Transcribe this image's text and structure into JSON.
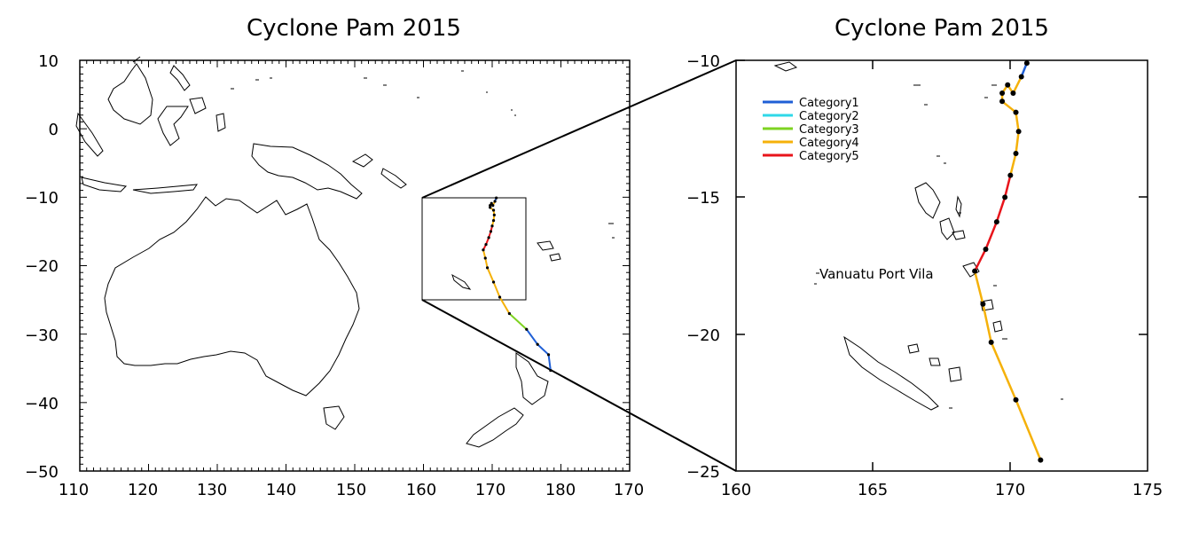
{
  "left_map": {
    "title": "Cyclone Pam 2015",
    "x_ticks": [
      "110",
      "120",
      "130",
      "140",
      "150",
      "160",
      "170",
      "180",
      "170"
    ],
    "y_ticks": [
      "10",
      "0",
      "−10",
      "−20",
      "−30",
      "−40",
      "−50"
    ]
  },
  "right_map": {
    "title": "Cyclone Pam 2015",
    "x_ticks": [
      "160",
      "165",
      "170",
      "175"
    ],
    "y_ticks": [
      "−10",
      "−15",
      "−20",
      "−25"
    ],
    "place_label": "Vanuatu Port Vila"
  },
  "legend": [
    {
      "label": "Category1",
      "color": "#1f5fd6"
    },
    {
      "label": "Category2",
      "color": "#2fd8e8"
    },
    {
      "label": "Category3",
      "color": "#7ed321"
    },
    {
      "label": "Category4",
      "color": "#f5b10a"
    },
    {
      "label": "Category5",
      "color": "#e8141b"
    }
  ],
  "track": {
    "description_units": "degrees lon/lat",
    "points": [
      {
        "lon": 170.6,
        "lat": -10.1,
        "cat": 1
      },
      {
        "lon": 170.4,
        "lat": -10.6,
        "cat": 1
      },
      {
        "lon": 170.1,
        "lat": -11.2,
        "cat": 4
      },
      {
        "lon": 169.9,
        "lat": -10.9,
        "cat": 4
      },
      {
        "lon": 169.7,
        "lat": -11.2,
        "cat": 4
      },
      {
        "lon": 169.7,
        "lat": -11.5,
        "cat": 4
      },
      {
        "lon": 170.2,
        "lat": -11.9,
        "cat": 4
      },
      {
        "lon": 170.3,
        "lat": -12.6,
        "cat": 4
      },
      {
        "lon": 170.2,
        "lat": -13.4,
        "cat": 4
      },
      {
        "lon": 170.0,
        "lat": -14.2,
        "cat": 4
      },
      {
        "lon": 169.8,
        "lat": -15.0,
        "cat": 5
      },
      {
        "lon": 169.5,
        "lat": -15.9,
        "cat": 5
      },
      {
        "lon": 169.1,
        "lat": -16.9,
        "cat": 5
      },
      {
        "lon": 168.7,
        "lat": -17.7,
        "cat": 5
      },
      {
        "lon": 169.0,
        "lat": -18.9,
        "cat": 4
      },
      {
        "lon": 169.3,
        "lat": -20.3,
        "cat": 4
      },
      {
        "lon": 170.2,
        "lat": -22.4,
        "cat": 4
      },
      {
        "lon": 171.1,
        "lat": -24.6,
        "cat": 4
      },
      {
        "lon": 172.5,
        "lat": -27.0,
        "cat": 4
      },
      {
        "lon": 175.0,
        "lat": -29.3,
        "cat": 3
      },
      {
        "lon": 176.6,
        "lat": -31.5,
        "cat": 1
      },
      {
        "lon": 178.2,
        "lat": -33.0,
        "cat": 1
      },
      {
        "lon": 178.5,
        "lat": -35.3,
        "cat": 1
      }
    ]
  }
}
